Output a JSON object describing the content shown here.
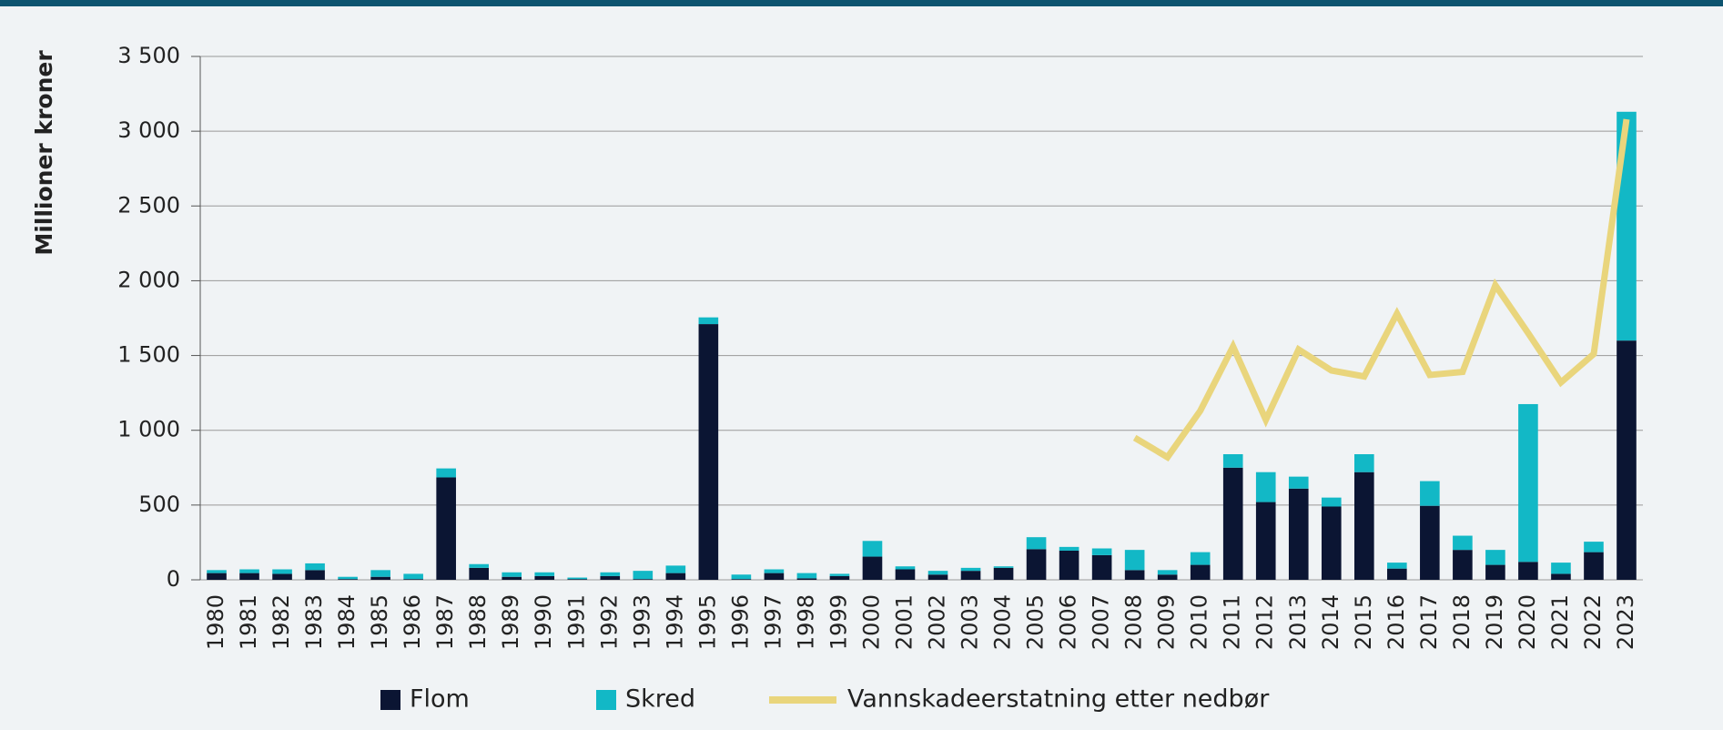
{
  "chart_data": {
    "type": "bar",
    "ylabel": "Millioner kroner",
    "categories": [
      "1980",
      "1981",
      "1982",
      "1983",
      "1984",
      "1985",
      "1986",
      "1987",
      "1988",
      "1989",
      "1990",
      "1991",
      "1992",
      "1993",
      "1994",
      "1995",
      "1996",
      "1997",
      "1998",
      "1999",
      "2000",
      "2001",
      "2002",
      "2003",
      "2004",
      "2005",
      "2006",
      "2007",
      "2008",
      "2009",
      "2010",
      "2011",
      "2012",
      "2013",
      "2014",
      "2015",
      "2016",
      "2017",
      "2018",
      "2019",
      "2020",
      "2021",
      "2022",
      "2023"
    ],
    "series": [
      {
        "name": "Flom",
        "type": "bar",
        "color": "#0b1533",
        "values": [
          45,
          45,
          40,
          65,
          5,
          20,
          5,
          685,
          80,
          20,
          25,
          5,
          25,
          5,
          45,
          1710,
          5,
          45,
          10,
          25,
          155,
          70,
          35,
          60,
          80,
          205,
          195,
          165,
          65,
          35,
          100,
          750,
          520,
          610,
          490,
          720,
          75,
          495,
          200,
          100,
          120,
          40,
          185,
          1600
        ]
      },
      {
        "name": "Skred",
        "type": "bar",
        "color": "#12b8c6",
        "values": [
          20,
          25,
          30,
          45,
          15,
          45,
          35,
          60,
          25,
          30,
          25,
          10,
          25,
          55,
          50,
          45,
          30,
          25,
          35,
          15,
          105,
          20,
          25,
          20,
          10,
          80,
          25,
          45,
          135,
          30,
          85,
          90,
          200,
          80,
          60,
          120,
          40,
          165,
          95,
          100,
          1055,
          75,
          70,
          1530
        ]
      },
      {
        "name": "Vannskadeerstatning etter nedbør",
        "type": "line",
        "color": "#e9d57c",
        "values": [
          null,
          null,
          null,
          null,
          null,
          null,
          null,
          null,
          null,
          null,
          null,
          null,
          null,
          null,
          null,
          null,
          null,
          null,
          null,
          null,
          null,
          null,
          null,
          null,
          null,
          null,
          null,
          null,
          950,
          820,
          1130,
          1560,
          1070,
          1540,
          1400,
          1360,
          1780,
          1370,
          1390,
          1970,
          1650,
          1320,
          1510,
          3080
        ]
      }
    ],
    "ylim": [
      0,
      3500
    ],
    "yticks": [
      0,
      500,
      {
        "value": 1000,
        "label": "1 000"
      },
      {
        "value": 1500,
        "label": "1 500"
      },
      {
        "value": 2000,
        "label": "2 000"
      },
      {
        "value": 2500,
        "label": "2 500"
      },
      {
        "value": 3000,
        "label": "3 000"
      },
      {
        "value": 3500,
        "label": "3 500"
      }
    ],
    "grid": true,
    "stacked": true,
    "legend": "bottom"
  }
}
